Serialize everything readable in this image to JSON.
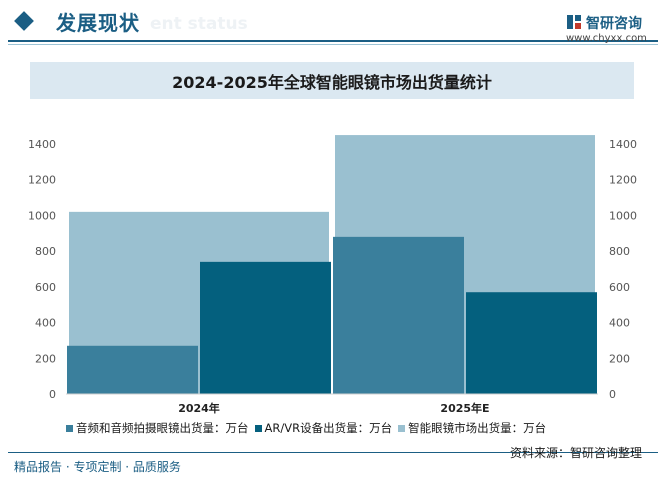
{
  "header": {
    "section_title": "发展现状",
    "section_subtitle": "ent status",
    "logo_name": "智研咨询",
    "logo_url": "www.chyxx.com"
  },
  "colors": {
    "brand": "#1b5e84",
    "series_audio": "#3a7f9c",
    "series_arvr": "#04607e",
    "series_smart": "#9ac0d0"
  },
  "chart_data": {
    "type": "bar",
    "title": "2024-2025年全球智能眼镜市场出货量统计",
    "categories": [
      "2024年",
      "2025年E"
    ],
    "series": [
      {
        "name": "音频和音频拍摄眼镜出货量：万台",
        "values": [
          270,
          880
        ],
        "axis": "left"
      },
      {
        "name": "AR/VR设备出货量：万台",
        "values": [
          740,
          570
        ],
        "axis": "left"
      },
      {
        "name": "智能眼镜市场出货量：万台",
        "values": [
          1020,
          1450
        ],
        "axis": "right"
      }
    ],
    "ylim_left": [
      0,
      1400
    ],
    "ylim_right": [
      0,
      1400
    ],
    "yticks_left": [
      "0",
      "200",
      "400",
      "600",
      "800",
      "1000",
      "1200",
      "1400"
    ],
    "yticks_right": [
      "0",
      "200",
      "400",
      "600",
      "800",
      "1000",
      "1200",
      "1400"
    ],
    "grid": false,
    "legend_position": "bottom"
  },
  "footer": {
    "left": "精品报告 · 专项定制 · 品质服务",
    "source": "资料来源：智研咨询整理"
  }
}
